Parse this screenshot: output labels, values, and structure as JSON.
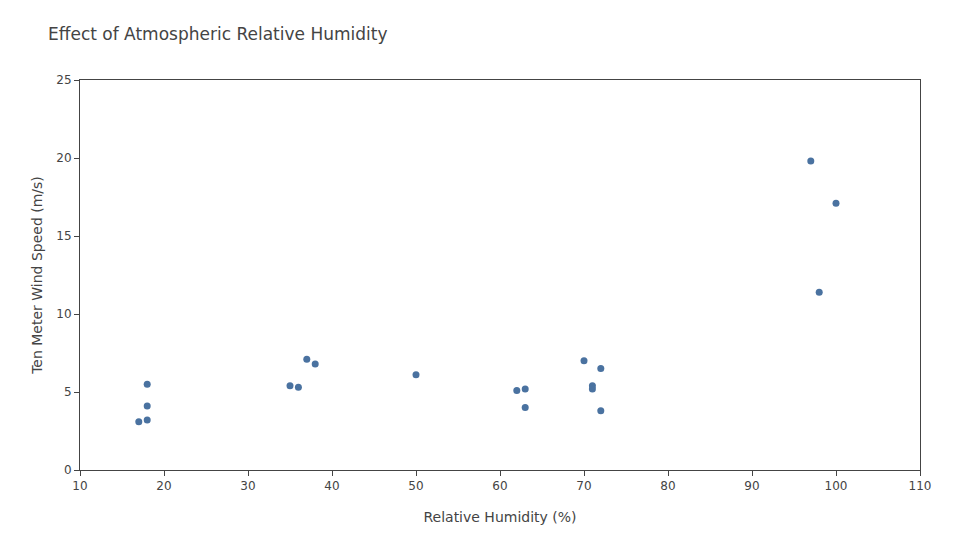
{
  "chart_data": {
    "type": "scatter",
    "title": "Effect of Atmospheric Relative Humidity",
    "xlabel": "Relative Humidity (%)",
    "ylabel": "Ten Meter Wind Speed (m/s)",
    "x": [
      17,
      18,
      18,
      18,
      35,
      36,
      37,
      38,
      50,
      62,
      63,
      63,
      70,
      71,
      71,
      72,
      72,
      97,
      98,
      100
    ],
    "values": [
      3.1,
      3.2,
      4.1,
      5.5,
      5.4,
      5.3,
      7.1,
      6.8,
      6.1,
      5.1,
      5.2,
      4.0,
      7.0,
      5.4,
      5.2,
      6.5,
      3.8,
      19.8,
      11.4,
      17.1
    ],
    "color": "#4a72a0",
    "xlim": [
      10,
      110
    ],
    "ylim": [
      0,
      25
    ],
    "xticks": [
      10,
      20,
      30,
      40,
      50,
      60,
      70,
      80,
      90,
      100,
      110
    ],
    "yticks": [
      0,
      5,
      10,
      15,
      20,
      25
    ],
    "grid": false
  }
}
